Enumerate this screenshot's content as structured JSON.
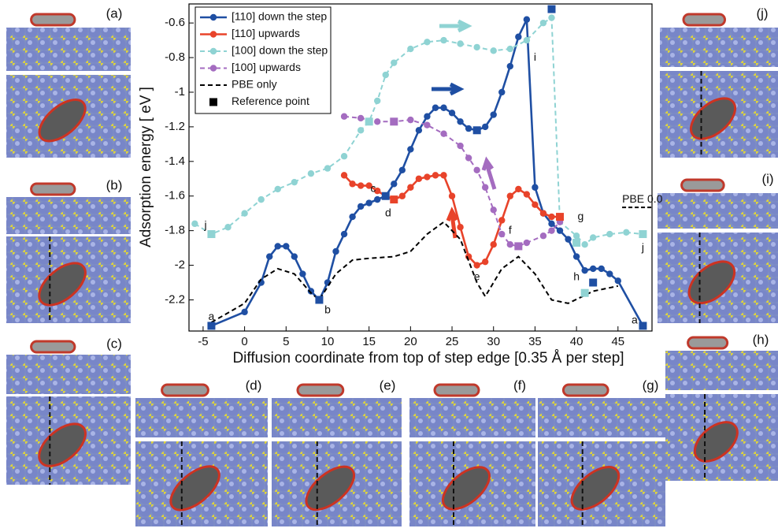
{
  "chart_data": {
    "type": "line",
    "xlabel": "Diffusion coordinate from top of step edge [0.35 Å per step]",
    "ylabel": "Adsorption energy   [ eV ]",
    "xlim": [
      -6.7,
      49.1
    ],
    "xticks": [
      -5,
      0,
      5,
      10,
      15,
      20,
      25,
      30,
      35,
      40,
      45
    ],
    "ylim": [
      -2.38,
      -0.49
    ],
    "yticks": [
      -2.2,
      -2,
      -1.8,
      -1.6,
      -1.4,
      -1.2,
      -1,
      -0.8,
      -0.6
    ],
    "grid": false,
    "legend": "upper left",
    "series": [
      {
        "name": "[110] down the step",
        "color": "#1f4fa3",
        "dash": false,
        "marker": "circle",
        "x": [
          -4,
          0,
          2,
          3,
          4,
          5,
          6,
          7,
          8,
          9,
          10,
          11,
          12,
          13,
          14,
          15,
          16,
          17,
          18,
          19,
          20,
          21,
          22,
          23,
          24,
          25,
          26,
          27,
          28,
          29,
          30,
          31,
          32,
          33,
          34,
          35,
          36,
          37,
          38,
          39,
          40,
          41,
          42,
          43,
          44,
          45,
          48
        ],
        "values": [
          -2.35,
          -2.27,
          -2.1,
          -1.95,
          -1.89,
          -1.89,
          -1.95,
          -2.05,
          -2.15,
          -2.2,
          -2.1,
          -1.92,
          -1.82,
          -1.72,
          -1.66,
          -1.64,
          -1.62,
          -1.6,
          -1.53,
          -1.45,
          -1.33,
          -1.22,
          -1.14,
          -1.09,
          -1.09,
          -1.12,
          -1.17,
          -1.21,
          -1.22,
          -1.2,
          -1.13,
          -1.0,
          -0.85,
          -0.68,
          -0.58,
          -1.55,
          -1.7,
          -1.76,
          -1.8,
          -1.85,
          -1.95,
          -2.03,
          -2.02,
          -2.02,
          -2.05,
          -2.09,
          -2.35
        ]
      },
      {
        "name": "[110] upwards",
        "color": "#e8432a",
        "dash": false,
        "marker": "circle",
        "x": [
          12,
          13,
          14,
          15,
          16,
          17,
          18,
          19,
          20,
          21,
          22,
          23,
          24,
          25,
          26,
          27,
          28,
          29,
          30,
          31,
          32,
          33,
          34,
          35,
          36,
          37,
          38
        ],
        "values": [
          -1.48,
          -1.53,
          -1.54,
          -1.54,
          -1.57,
          -1.6,
          -1.62,
          -1.6,
          -1.55,
          -1.5,
          -1.49,
          -1.48,
          -1.48,
          -1.6,
          -1.78,
          -1.95,
          -2.0,
          -1.98,
          -1.88,
          -1.74,
          -1.6,
          -1.56,
          -1.59,
          -1.65,
          -1.7,
          -1.72,
          -1.72
        ]
      },
      {
        "name": "[100] down the step",
        "color": "#8fd3d3",
        "dash": true,
        "marker": "circle",
        "x": [
          -6,
          -4,
          -2,
          0,
          2,
          4,
          6,
          8,
          10,
          12,
          14,
          15,
          16,
          17,
          18,
          20,
          22,
          24,
          26,
          28,
          30,
          32,
          34,
          36,
          37,
          38,
          40,
          41,
          42,
          44,
          46,
          48
        ],
        "values": [
          -1.76,
          -1.82,
          -1.78,
          -1.7,
          -1.62,
          -1.56,
          -1.52,
          -1.47,
          -1.44,
          -1.37,
          -1.22,
          -1.17,
          -1.05,
          -0.9,
          -0.83,
          -0.75,
          -0.71,
          -0.7,
          -0.72,
          -0.74,
          -0.76,
          -0.75,
          -0.7,
          -0.6,
          -0.57,
          -1.75,
          -1.83,
          -1.88,
          -1.84,
          -1.82,
          -1.81,
          -1.82
        ]
      },
      {
        "name": "[100] upwards",
        "color": "#a46cc0",
        "dash": true,
        "marker": "circle",
        "x": [
          12,
          14,
          16,
          18,
          20,
          22,
          24,
          26,
          27,
          28,
          29,
          30,
          31,
          32,
          33,
          34,
          36,
          37,
          38
        ],
        "values": [
          -1.14,
          -1.15,
          -1.17,
          -1.17,
          -1.16,
          -1.19,
          -1.24,
          -1.31,
          -1.38,
          -1.45,
          -1.55,
          -1.68,
          -1.82,
          -1.88,
          -1.89,
          -1.87,
          -1.83,
          -1.8,
          -1.75
        ]
      },
      {
        "name": "PBE only",
        "color": "#000000",
        "dash": true,
        "marker": "none",
        "x": [
          -4,
          0,
          2,
          4,
          6,
          8,
          9,
          11,
          13,
          15,
          18,
          20,
          22,
          24,
          26,
          28,
          29,
          31,
          33,
          35,
          37,
          39,
          42,
          45
        ],
        "values": [
          -2.33,
          -2.22,
          -2.08,
          -2.02,
          -2.05,
          -2.16,
          -2.2,
          -2.05,
          -1.97,
          -1.96,
          -1.95,
          -1.92,
          -1.82,
          -1.75,
          -1.85,
          -2.1,
          -2.18,
          -2.02,
          -1.95,
          -2.05,
          -2.2,
          -2.22,
          -2.15,
          -2.12
        ]
      }
    ],
    "reference_points": {
      "name": "Reference point",
      "color": "#000000",
      "x": [
        -4,
        9,
        17,
        28,
        37,
        42,
        48,
        18,
        38,
        -4,
        15,
        40,
        41,
        48,
        18,
        33
      ],
      "values": [
        -2.35,
        -2.2,
        -1.6,
        -1.22,
        -0.52,
        -2.1,
        -2.35,
        -1.62,
        -1.72,
        -1.82,
        -1.17,
        -1.87,
        -2.16,
        -1.82,
        -1.17,
        -1.89
      ],
      "colors": [
        "#1f4fa3",
        "#1f4fa3",
        "#1f4fa3",
        "#1f4fa3",
        "#1f4fa3",
        "#1f4fa3",
        "#1f4fa3",
        "#e8432a",
        "#e8432a",
        "#8fd3d3",
        "#8fd3d3",
        "#8fd3d3",
        "#8fd3d3",
        "#8fd3d3",
        "#a46cc0",
        "#a46cc0"
      ]
    },
    "annotations": [
      {
        "text": "a",
        "x": -4,
        "y": -2.3
      },
      {
        "text": "b",
        "x": 10,
        "y": -2.26
      },
      {
        "text": "c",
        "x": 15.5,
        "y": -1.56
      },
      {
        "text": "d",
        "x": 17.3,
        "y": -1.7
      },
      {
        "text": "e",
        "x": 28,
        "y": -2.07
      },
      {
        "text": "f",
        "x": 32,
        "y": -1.8
      },
      {
        "text": "g",
        "x": 40.5,
        "y": -1.72
      },
      {
        "text": "h",
        "x": 40,
        "y": -2.07
      },
      {
        "text": "i",
        "x": 35,
        "y": -0.8
      },
      {
        "text": "j",
        "x": -4.7,
        "y": -1.77
      },
      {
        "text": "j",
        "x": 48,
        "y": -1.9
      },
      {
        "text": "a",
        "x": 47,
        "y": -2.32
      },
      {
        "text": "PBE 0.0",
        "x": 45.5,
        "y": -1.62
      }
    ]
  },
  "panels": [
    "(a)",
    "(b)",
    "(c)",
    "(d)",
    "(e)",
    "(f)",
    "(g)",
    "(h)",
    "(i)",
    "(j)"
  ]
}
